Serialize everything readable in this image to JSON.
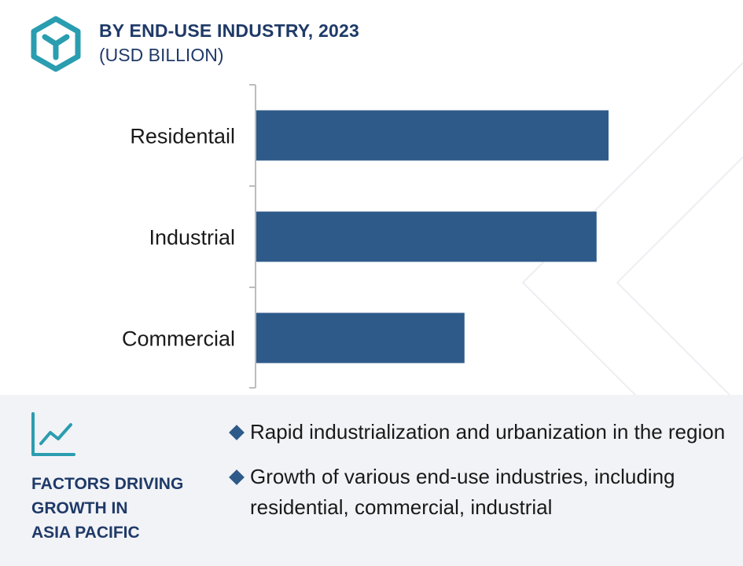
{
  "header": {
    "title": "BY END-USE INDUSTRY, 2023",
    "subtitle": "(USD BILLION)"
  },
  "colors": {
    "bar": "#2e5a8a",
    "title": "#1f3a68",
    "icon": "#2a9db0",
    "panel_bg": "#f2f3f7"
  },
  "chart_data": {
    "type": "bar",
    "orientation": "horizontal",
    "title": "BY END-USE INDUSTRY, 2023",
    "subtitle": "(USD BILLION)",
    "categories": [
      "Residentail",
      "Industrial",
      "Commercial"
    ],
    "values": [
      100,
      96.6,
      59.1
    ],
    "xlim": [
      0,
      100
    ],
    "grid": false,
    "legend": "none"
  },
  "panel": {
    "factors_lines": [
      "FACTORS DRIVING",
      "GROWTH IN",
      "ASIA PACIFIC"
    ],
    "bullets": [
      "Rapid industrialization and urbanization in the region",
      "Growth of various end-use industries, including residential, commercial, industrial"
    ]
  }
}
